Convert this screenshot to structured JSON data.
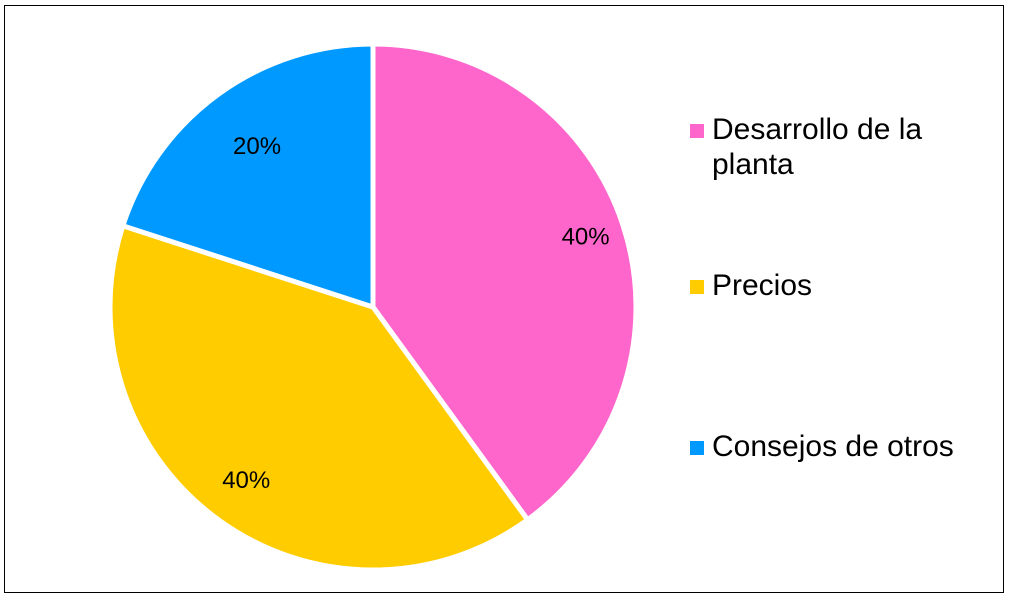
{
  "chart_data": {
    "type": "pie",
    "title": "",
    "slices": [
      {
        "name": "Desarrollo de la planta",
        "value": 40,
        "label": "40%",
        "color": "#FF66CC"
      },
      {
        "name": "Precios",
        "value": 40,
        "label": "40%",
        "color": "#FFCC00"
      },
      {
        "name": "Consejos de otros",
        "value": 20,
        "label": "20%",
        "color": "#0099FF"
      }
    ],
    "legend_position": "right"
  }
}
